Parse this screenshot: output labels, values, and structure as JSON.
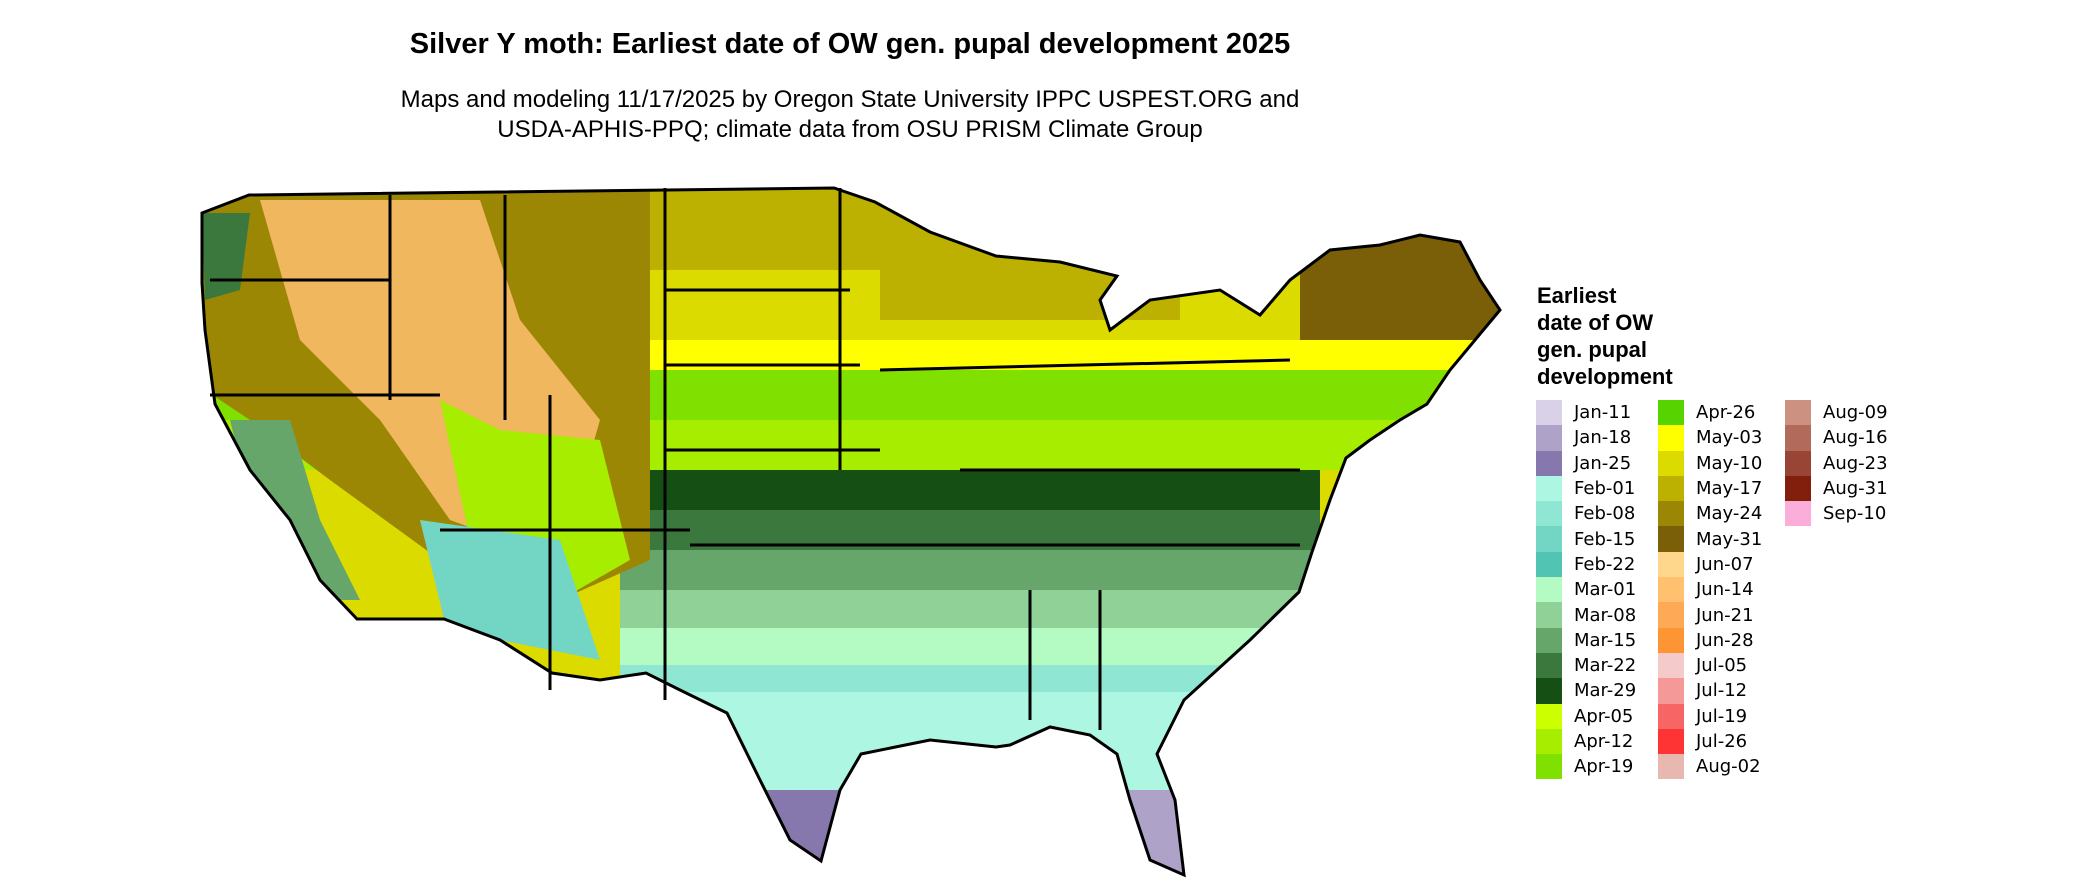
{
  "title": "Silver Y moth: Earliest date of OW gen. pupal development 2025",
  "subtitle_line1": "Maps and modeling 11/17/2025 by Oregon State University IPPC USPEST.ORG and",
  "subtitle_line2": "USDA-APHIS-PPQ; climate data from OSU PRISM Climate Group",
  "legend": {
    "title_lines": [
      "Earliest",
      "date of OW",
      "gen. pupal",
      "development"
    ],
    "columns": [
      [
        {
          "label": "Jan-11",
          "color": "#d9d1e8"
        },
        {
          "label": "Jan-18",
          "color": "#aea2c9"
        },
        {
          "label": "Jan-25",
          "color": "#8677ac"
        },
        {
          "label": "Feb-01",
          "color": "#adf7e2"
        },
        {
          "label": "Feb-08",
          "color": "#8fe6d2"
        },
        {
          "label": "Feb-15",
          "color": "#73d6c4"
        },
        {
          "label": "Feb-22",
          "color": "#52c4b4"
        },
        {
          "label": "Mar-01",
          "color": "#b3fbc3"
        },
        {
          "label": "Mar-08",
          "color": "#8fd196"
        },
        {
          "label": "Mar-15",
          "color": "#66a66b"
        },
        {
          "label": "Mar-22",
          "color": "#3b783d"
        },
        {
          "label": "Mar-29",
          "color": "#154f14"
        },
        {
          "label": "Apr-05",
          "color": "#ccff00"
        },
        {
          "label": "Apr-12",
          "color": "#a6ed00"
        },
        {
          "label": "Apr-19",
          "color": "#80e000"
        }
      ],
      [
        {
          "label": "Apr-26",
          "color": "#57d400"
        },
        {
          "label": "May-03",
          "color": "#ffff00"
        },
        {
          "label": "May-10",
          "color": "#dcdb00"
        },
        {
          "label": "May-17",
          "color": "#bcb100"
        },
        {
          "label": "May-24",
          "color": "#9c8705"
        },
        {
          "label": "May-31",
          "color": "#7a5e08"
        },
        {
          "label": "Jun-07",
          "color": "#ffd78c"
        },
        {
          "label": "Jun-14",
          "color": "#ffc070"
        },
        {
          "label": "Jun-21",
          "color": "#fda955"
        },
        {
          "label": "Jun-28",
          "color": "#fd9535"
        },
        {
          "label": "Jul-05",
          "color": "#f4caca"
        },
        {
          "label": "Jul-12",
          "color": "#f49898"
        },
        {
          "label": "Jul-19",
          "color": "#f76565"
        },
        {
          "label": "Jul-26",
          "color": "#fe3333"
        },
        {
          "label": "Aug-02",
          "color": "#e6b8b0"
        }
      ],
      [
        {
          "label": "Aug-09",
          "color": "#cd9182"
        },
        {
          "label": "Aug-16",
          "color": "#b26b5b"
        },
        {
          "label": "Aug-23",
          "color": "#984535"
        },
        {
          "label": "Aug-31",
          "color": "#821e0c"
        },
        {
          "label": "Sep-10",
          "color": "#fcaedb"
        }
      ]
    ]
  }
}
